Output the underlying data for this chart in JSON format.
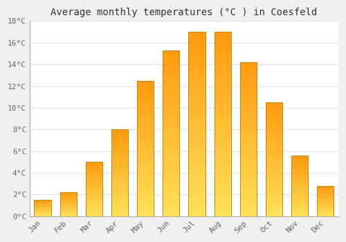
{
  "categories": [
    "Jan",
    "Feb",
    "Mar",
    "Apr",
    "May",
    "Jun",
    "Jul",
    "Aug",
    "Sep",
    "Oct",
    "Nov",
    "Dec"
  ],
  "values": [
    1.5,
    2.2,
    5.0,
    8.0,
    12.5,
    15.3,
    17.0,
    17.0,
    14.2,
    10.5,
    5.6,
    2.8
  ],
  "bar_color": "#FFA500",
  "bar_highlight": "#FFD000",
  "bar_edge_color": "#C8860A",
  "title": "Average monthly temperatures (°C ) in Coesfeld",
  "ylim": [
    0,
    18
  ],
  "ytick_step": 2,
  "plot_bg_color": "#FFFFFF",
  "fig_bg_color": "#F0F0F0",
  "grid_color": "#E0E0E0",
  "title_fontsize": 10,
  "tick_fontsize": 8,
  "tick_color": "#666666",
  "title_color": "#333333"
}
